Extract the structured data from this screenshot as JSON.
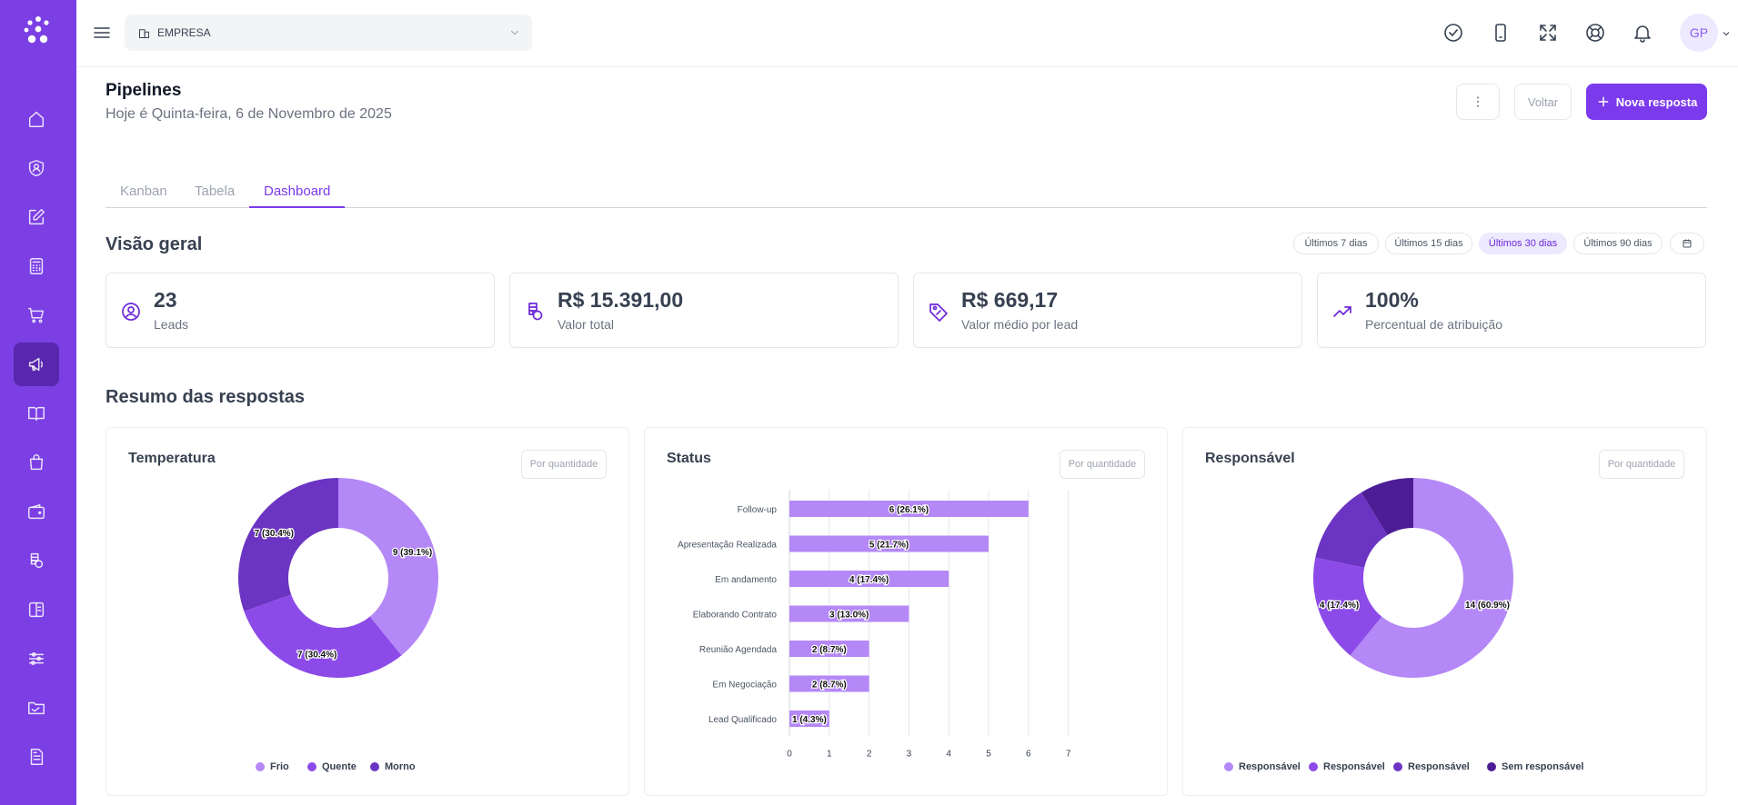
{
  "topbar": {
    "company": "EMPRESA",
    "avatar_initials": "GP"
  },
  "header": {
    "title": "Pipelines",
    "subtitle": "Hoje é Quinta-feira, 6 de Novembro de 2025",
    "back_label": "Voltar",
    "new_label": "Nova resposta"
  },
  "tabs": [
    {
      "label": "Kanban"
    },
    {
      "label": "Tabela"
    },
    {
      "label": "Dashboard",
      "active": true
    }
  ],
  "overview": {
    "title": "Visão geral",
    "ranges": [
      "Últimos 7 dias",
      "Últimos 15 dias",
      "Últimos 30 dias",
      "Últimos 90 dias"
    ],
    "active_range": "Últimos 30 dias",
    "stats": [
      {
        "icon": "user-circle-icon",
        "value": "23",
        "label": "Leads"
      },
      {
        "icon": "coins-icon",
        "value": "R$ 15.391,00",
        "label": "Valor total"
      },
      {
        "icon": "tag-icon",
        "value": "R$ 669,17",
        "label": "Valor médio por lead"
      },
      {
        "icon": "trending-up-icon",
        "value": "100%",
        "label": "Percentual de atribuição"
      }
    ]
  },
  "summary": {
    "title": "Resumo das respostas",
    "mode_label": "Por quantidade",
    "cards": [
      {
        "title": "Temperatura"
      },
      {
        "title": "Status"
      },
      {
        "title": "Responsável"
      }
    ]
  },
  "colors": {
    "accent": "#7c3aed",
    "sidebar": "#7b3fe4"
  },
  "chart_data": [
    {
      "type": "pie",
      "title": "Temperatura",
      "categories": [
        "Frio",
        "Quente",
        "Morno"
      ],
      "values": [
        9,
        7,
        7
      ],
      "labels": [
        "9 (39.1%)",
        "7 (30.4%)",
        "7 (30.4%)"
      ],
      "colors": [
        "#b488f6",
        "#8c4be8",
        "#6b34c2"
      ],
      "legend": "bottom"
    },
    {
      "type": "bar",
      "title": "Status",
      "orientation": "horizontal",
      "categories": [
        "Follow-up",
        "Apresentação Realizada",
        "Em andamento",
        "Elaborando Contrato",
        "Reunião Agendada",
        "Em Negociação",
        "Lead Qualificado"
      ],
      "values": [
        6,
        5,
        4,
        3,
        2,
        2,
        1
      ],
      "labels": [
        "6 (26.1%)",
        "5 (21.7%)",
        "4 (17.4%)",
        "3 (13.0%)",
        "2 (8.7%)",
        "2 (8.7%)",
        "1 (4.3%)"
      ],
      "xlim": [
        0,
        7
      ],
      "xticks": [
        "0",
        "1",
        "2",
        "3",
        "4",
        "5",
        "6",
        "7"
      ],
      "grid": true,
      "color": "#b488f6"
    },
    {
      "type": "pie",
      "title": "Responsável",
      "categories": [
        "Responsável",
        "Responsável",
        "Responsável",
        "Sem responsável"
      ],
      "values": [
        14,
        4,
        3,
        2
      ],
      "labels": [
        "14 (60.9%)",
        "4 (17.4%)",
        "",
        ""
      ],
      "colors": [
        "#b488f6",
        "#8c4be8",
        "#6b34c2",
        "#4c1d95"
      ],
      "legend": "bottom"
    }
  ]
}
